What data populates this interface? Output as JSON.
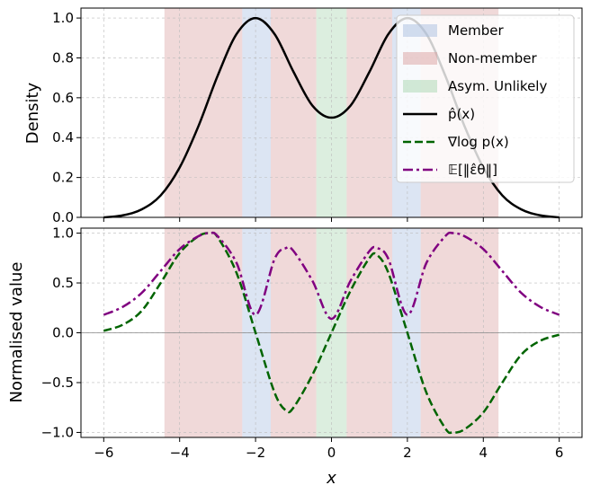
{
  "chart_data": [
    {
      "type": "line",
      "panel": "top",
      "ylabel": "Density",
      "xlim": [
        -6.6,
        6.6
      ],
      "ylim": [
        0.0,
        1.05
      ],
      "xticks": [
        -6,
        -4,
        -2,
        0,
        2,
        4,
        6
      ],
      "yticks": [
        "0.0",
        "0.2",
        "0.4",
        "0.6",
        "0.8",
        "1.0"
      ],
      "grid": true,
      "legend_position": "top-right",
      "regions": [
        {
          "label": "Non-member",
          "from": -4.4,
          "to": -2.35,
          "color": "#d9a0a0"
        },
        {
          "label": "Member",
          "from": -2.35,
          "to": -1.6,
          "color": "#a8bde0"
        },
        {
          "label": "Non-member",
          "from": -1.6,
          "to": -0.4,
          "color": "#d9a0a0"
        },
        {
          "label": "Asym. Unlikely",
          "from": -0.4,
          "to": 0.4,
          "color": "#a8d5b0"
        },
        {
          "label": "Non-member",
          "from": 0.4,
          "to": 1.6,
          "color": "#d9a0a0"
        },
        {
          "label": "Member",
          "from": 1.6,
          "to": 2.35,
          "color": "#a8bde0"
        },
        {
          "label": "Non-member",
          "from": 2.35,
          "to": 4.4,
          "color": "#d9a0a0"
        }
      ],
      "series": [
        {
          "name": "p̂(x)",
          "color": "#000000",
          "style": "solid",
          "x": [
            -6,
            -5.5,
            -5,
            -4.5,
            -4,
            -3.5,
            -3,
            -2.5,
            -2,
            -1.5,
            -1,
            -0.5,
            0,
            0.5,
            1,
            1.5,
            2,
            2.5,
            3,
            3.5,
            4,
            4.5,
            5,
            5.5,
            6
          ],
          "values": [
            0.0,
            0.01,
            0.04,
            0.11,
            0.25,
            0.46,
            0.71,
            0.92,
            1.0,
            0.92,
            0.73,
            0.56,
            0.5,
            0.56,
            0.73,
            0.92,
            1.0,
            0.92,
            0.71,
            0.46,
            0.25,
            0.11,
            0.04,
            0.01,
            0.0
          ]
        }
      ]
    },
    {
      "type": "line",
      "panel": "bottom",
      "ylabel": "Normalised value",
      "xlabel": "x",
      "xlim": [
        -6.6,
        6.6
      ],
      "ylim": [
        -1.05,
        1.05
      ],
      "xticks": [
        -6,
        -4,
        -2,
        0,
        2,
        4,
        6
      ],
      "yticks": [
        "−1.0",
        "−0.5",
        "0.0",
        "0.5",
        "1.0"
      ],
      "grid": true,
      "series": [
        {
          "name": "∇log p(x)",
          "color": "#006400",
          "style": "dashed",
          "x": [
            -6,
            -5.5,
            -5,
            -4.5,
            -4,
            -3.5,
            -3.2,
            -3,
            -2.5,
            -2,
            -1.5,
            -1.2,
            -1,
            -0.5,
            0,
            0.5,
            1,
            1.2,
            1.5,
            2,
            2.5,
            3,
            3.2,
            3.5,
            4,
            4.5,
            5,
            5.5,
            6
          ],
          "values": [
            0.02,
            0.08,
            0.22,
            0.5,
            0.8,
            0.97,
            1.0,
            0.96,
            0.6,
            0.0,
            -0.6,
            -0.78,
            -0.75,
            -0.42,
            0.0,
            0.42,
            0.75,
            0.78,
            0.6,
            0.0,
            -0.6,
            -0.96,
            -1.0,
            -0.97,
            -0.8,
            -0.5,
            -0.22,
            -0.08,
            -0.02
          ]
        },
        {
          "name": "𝔼[‖ε̂θ‖]",
          "color": "#800080",
          "style": "dashdot",
          "x": [
            -6,
            -5.5,
            -5,
            -4.5,
            -4,
            -3.5,
            -3.2,
            -3,
            -2.5,
            -2,
            -1.5,
            -1.2,
            -1,
            -0.5,
            0,
            0.5,
            1,
            1.2,
            1.5,
            2,
            2.5,
            3,
            3.2,
            3.5,
            4,
            4.5,
            5,
            5.5,
            6
          ],
          "values": [
            0.18,
            0.26,
            0.4,
            0.62,
            0.84,
            0.97,
            1.0,
            0.97,
            0.7,
            0.18,
            0.74,
            0.85,
            0.82,
            0.52,
            0.14,
            0.52,
            0.82,
            0.85,
            0.74,
            0.18,
            0.7,
            0.97,
            1.0,
            0.97,
            0.84,
            0.62,
            0.4,
            0.26,
            0.18
          ]
        }
      ]
    }
  ],
  "legend": {
    "items": [
      {
        "label": "Member",
        "kind": "patch",
        "color": "#a8bde0"
      },
      {
        "label": "Non-member",
        "kind": "patch",
        "color": "#d9a0a0"
      },
      {
        "label": "Asym. Unlikely",
        "kind": "patch",
        "color": "#a8d5b0"
      },
      {
        "label": "p̂(x)",
        "kind": "line",
        "color": "#000000",
        "style": "solid"
      },
      {
        "label": "∇log p(x)",
        "kind": "line",
        "color": "#006400",
        "style": "dashed"
      },
      {
        "label": "𝔼[‖ε̂θ‖]",
        "kind": "line",
        "color": "#800080",
        "style": "dashdot"
      }
    ]
  }
}
